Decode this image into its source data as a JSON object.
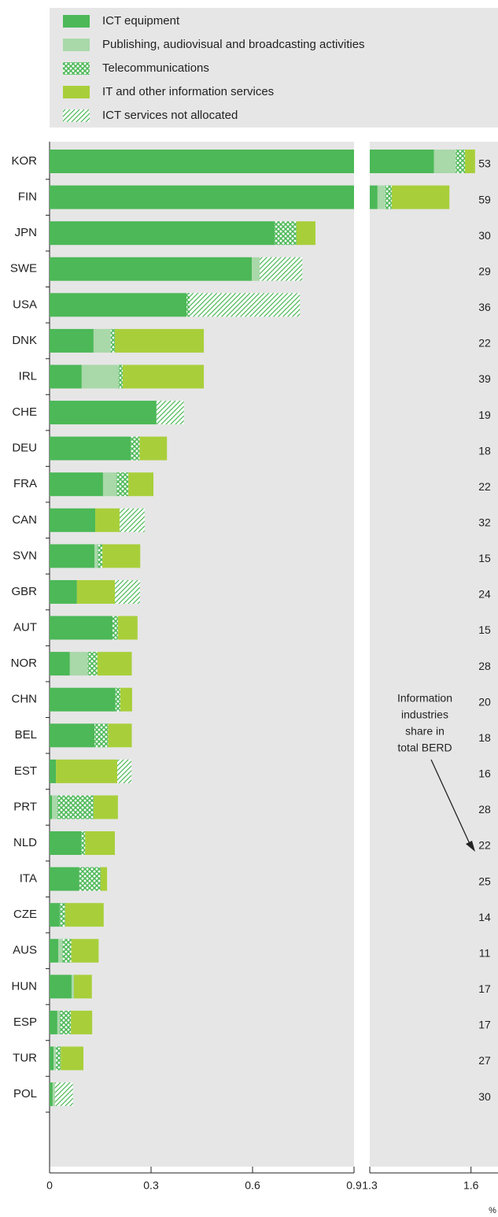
{
  "chart_data": {
    "type": "bar",
    "orientation": "horizontal",
    "categories": [
      "KOR",
      "FIN",
      "JPN",
      "SWE",
      "USA",
      "DNK",
      "IRL",
      "CHE",
      "DEU",
      "FRA",
      "CAN",
      "SVN",
      "GBR",
      "AUT",
      "NOR",
      "CHN",
      "BEL",
      "EST",
      "PRT",
      "NLD",
      "ITA",
      "CZE",
      "AUS",
      "HUN",
      "ESP",
      "TUR",
      "POL"
    ],
    "series": [
      {
        "name": "ICT equipment",
        "color": "#4cb857",
        "pattern": "solid",
        "values": [
          1.49,
          1.323,
          0.665,
          0.598,
          0.405,
          0.13,
          0.095,
          0.316,
          0.24,
          0.158,
          0.135,
          0.133,
          0.081,
          0.186,
          0.06,
          0.195,
          0.133,
          0.019,
          0.007,
          0.093,
          0.088,
          0.03,
          0.026,
          0.065,
          0.023,
          0.012,
          0.009
        ]
      },
      {
        "name": "Publishing, audiovisual and broadcasting activities",
        "color": "#a9d8a9",
        "pattern": "solid",
        "values": [
          0.065,
          0.023,
          0,
          0.023,
          0,
          0.051,
          0.109,
          0,
          0,
          0.04,
          0,
          0.009,
          0,
          0,
          0.053,
          0,
          0,
          0,
          0.016,
          0,
          0,
          0,
          0.012,
          0.007,
          0.007,
          0.007,
          0.007
        ]
      },
      {
        "name": "Telecommunications",
        "color": "#4cb857",
        "pattern": "crosshatch",
        "values": [
          0.027,
          0.019,
          0.065,
          0,
          0.009,
          0.012,
          0.012,
          0,
          0.026,
          0.035,
          0,
          0.014,
          0,
          0.016,
          0.028,
          0.014,
          0.04,
          0,
          0.107,
          0.012,
          0.063,
          0.016,
          0.026,
          0,
          0.033,
          0.014,
          0
        ]
      },
      {
        "name": "IT and other information services",
        "color": "#a8cf3a",
        "pattern": "solid",
        "values": [
          0.03,
          0.171,
          0.056,
          0,
          0,
          0.263,
          0.24,
          0,
          0.081,
          0.074,
          0.072,
          0.112,
          0.112,
          0.058,
          0.102,
          0.035,
          0.07,
          0.181,
          0.072,
          0.088,
          0.019,
          0.114,
          0.081,
          0.053,
          0.063,
          0.067,
          0
        ]
      },
      {
        "name": "ICT services not allocated",
        "color": "#4cb857",
        "pattern": "diagonal",
        "values": [
          0,
          0,
          0,
          0.126,
          0.326,
          0,
          0,
          0.081,
          0,
          0,
          0.074,
          0,
          0.074,
          0,
          0,
          0,
          0,
          0.042,
          0,
          0,
          0,
          0,
          0,
          0,
          0,
          0,
          0.053
        ]
      }
    ],
    "shares": [
      53,
      59,
      30,
      29,
      36,
      22,
      39,
      19,
      18,
      22,
      32,
      15,
      24,
      15,
      28,
      20,
      18,
      16,
      28,
      22,
      25,
      14,
      11,
      17,
      17,
      27,
      30
    ],
    "annotation": [
      "Information",
      "industries",
      "share in",
      "total BERD"
    ],
    "xlim": [
      0,
      0.9
    ],
    "xticks": [
      0,
      0.3,
      0.6,
      0.9
    ],
    "x2lim": [
      1.3,
      1.68
    ],
    "x2ticks": [
      1.3,
      1.6
    ],
    "x_unit": "%"
  }
}
